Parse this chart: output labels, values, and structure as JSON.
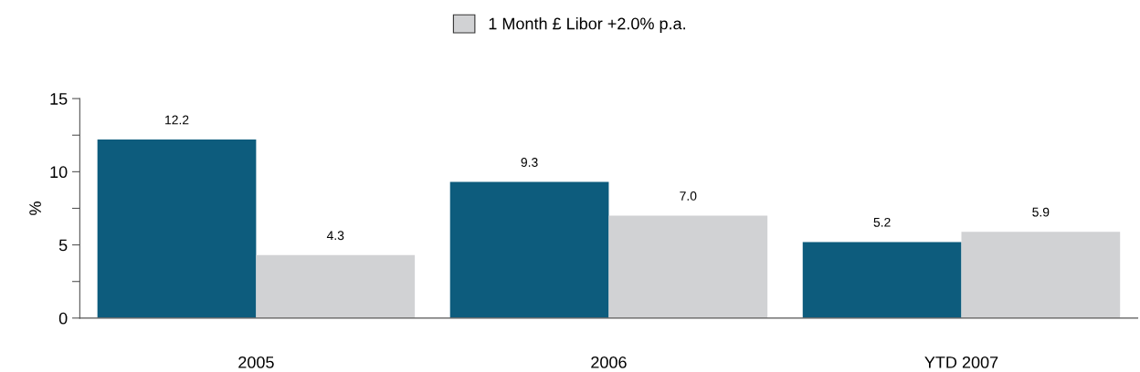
{
  "chart_data": {
    "type": "bar",
    "ylabel": "%",
    "categories": [
      "2005",
      "2006",
      "YTD 2007"
    ],
    "series": [
      {
        "name": null,
        "color": "#0d5c7d",
        "values": [
          12.2,
          9.3,
          5.2
        ]
      },
      {
        "name": "1 Month £ Libor +2.0% p.a.",
        "color": "#d1d2d4",
        "values": [
          4.3,
          7.0,
          5.9
        ]
      }
    ],
    "value_labels": [
      [
        "12.2",
        "9.3",
        "5.2"
      ],
      [
        "4.3",
        "7.0",
        "5.9"
      ]
    ],
    "ylim": [
      0,
      15
    ],
    "yticks": [
      0,
      {
        "value": 2.5,
        "label": null
      },
      5,
      {
        "value": 7.5,
        "label": null
      },
      10,
      {
        "value": 12.5,
        "label": null
      },
      15
    ],
    "grid": false,
    "legend": "top"
  }
}
